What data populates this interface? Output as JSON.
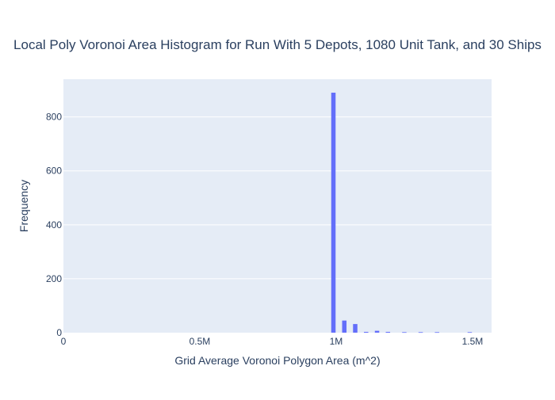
{
  "chart_data": {
    "type": "bar",
    "title": "Local Poly Voronoi Area Histogram for Run With 5 Depots, 1080 Unit Tank, and 30 Ships",
    "xlabel": "Grid Average Voronoi Polygon Area (m^2)",
    "ylabel": "Frequency",
    "xlim": [
      0,
      1570000
    ],
    "ylim": [
      0,
      940
    ],
    "x_ticks": [
      {
        "value": 0,
        "label": "0"
      },
      {
        "value": 500000,
        "label": "0.5M"
      },
      {
        "value": 1000000,
        "label": "1M"
      },
      {
        "value": 1500000,
        "label": "1.5M"
      }
    ],
    "y_ticks": [
      {
        "value": 0,
        "label": "0"
      },
      {
        "value": 200,
        "label": "200"
      },
      {
        "value": 400,
        "label": "400"
      },
      {
        "value": 600,
        "label": "600"
      },
      {
        "value": 800,
        "label": "800"
      }
    ],
    "bin_width": 20000,
    "bins": [
      {
        "x0": 980000,
        "x1": 1000000,
        "count": 890
      },
      {
        "x0": 1000000,
        "x1": 1020000,
        "count": 0
      },
      {
        "x0": 1020000,
        "x1": 1040000,
        "count": 45
      },
      {
        "x0": 1040000,
        "x1": 1060000,
        "count": 0
      },
      {
        "x0": 1060000,
        "x1": 1080000,
        "count": 32
      },
      {
        "x0": 1080000,
        "x1": 1100000,
        "count": 0
      },
      {
        "x0": 1100000,
        "x1": 1120000,
        "count": 3
      },
      {
        "x0": 1120000,
        "x1": 1140000,
        "count": 0
      },
      {
        "x0": 1140000,
        "x1": 1160000,
        "count": 7
      },
      {
        "x0": 1160000,
        "x1": 1180000,
        "count": 0
      },
      {
        "x0": 1180000,
        "x1": 1200000,
        "count": 3
      },
      {
        "x0": 1240000,
        "x1": 1260000,
        "count": 2
      },
      {
        "x0": 1300000,
        "x1": 1320000,
        "count": 2
      },
      {
        "x0": 1360000,
        "x1": 1380000,
        "count": 2
      },
      {
        "x0": 1480000,
        "x1": 1500000,
        "count": 2
      }
    ],
    "grid": true,
    "colors": {
      "bar": "#636efa",
      "plot_bg": "#e5ecf6",
      "grid": "#ffffff",
      "text": "#2a3f5f"
    }
  }
}
